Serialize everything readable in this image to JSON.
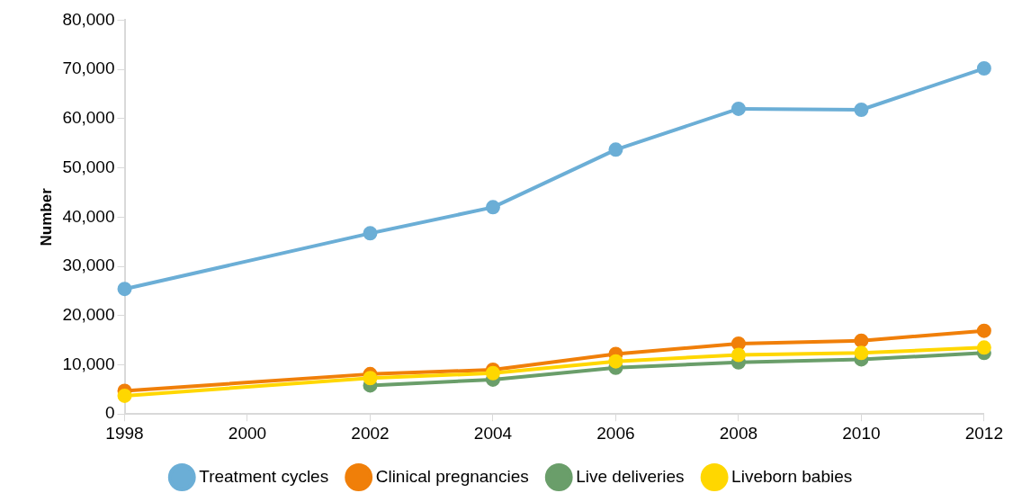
{
  "chart_data": {
    "type": "line",
    "ylabel": "Number",
    "x": [
      1998,
      2002,
      2004,
      2006,
      2008,
      2010,
      2012
    ],
    "xlim": [
      1998,
      2012
    ],
    "xticks": [
      1998,
      2000,
      2002,
      2004,
      2006,
      2008,
      2010,
      2012
    ],
    "ylim": [
      0,
      80000
    ],
    "yticks": [
      0,
      {
        "value": 10000,
        "label": "10,000"
      },
      {
        "value": 20000,
        "label": "20,000"
      },
      {
        "value": 30000,
        "label": "30,000"
      },
      {
        "value": 40000,
        "label": "40,000"
      },
      {
        "value": 50000,
        "label": "50,000"
      },
      {
        "value": 60000,
        "label": "60,000"
      },
      {
        "value": 70000,
        "label": "70,000"
      },
      {
        "value": 80000,
        "label": "80,000"
      }
    ],
    "grid": false,
    "legend": "bottom",
    "marker": "circle",
    "line_style": "solid",
    "series": [
      {
        "name": "Treatment cycles",
        "color": "#6baed6",
        "values": [
          25400,
          36700,
          42000,
          53700,
          62000,
          61800,
          70200
        ]
      },
      {
        "name": "Clinical pregnancies",
        "color": "#f07f09",
        "values": [
          4700,
          8100,
          9000,
          12200,
          14300,
          14900,
          16900
        ]
      },
      {
        "name": "Live deliveries",
        "color": "#6a9e6a",
        "values": [
          null,
          5800,
          7000,
          9400,
          10500,
          11100,
          12400
        ]
      },
      {
        "name": "Liveborn babies",
        "color": "#ffd700",
        "values": [
          3700,
          7300,
          8300,
          10700,
          12000,
          12400,
          13500
        ]
      }
    ]
  }
}
